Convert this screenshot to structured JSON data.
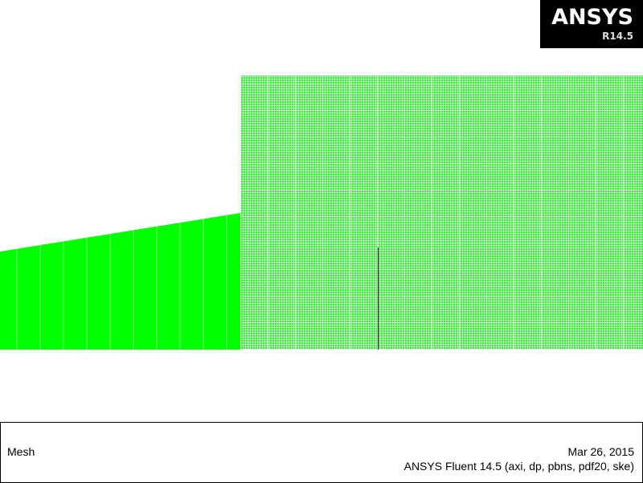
{
  "logo": {
    "brand": "ANSYS",
    "release": "R14.5"
  },
  "graphics": {
    "mesh_color": "#3ce83c",
    "left_zone_color": "#00ff00"
  },
  "info": {
    "title": "Mesh",
    "date": "Mar 26, 2015",
    "version": "ANSYS Fluent 14.5 (axi, dp, pbns, pdf20, ske)"
  }
}
